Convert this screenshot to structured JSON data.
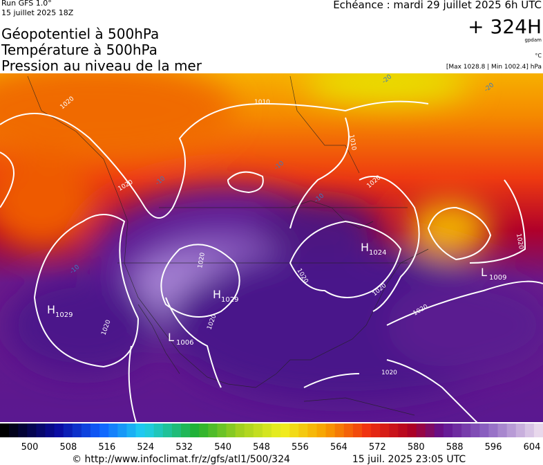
{
  "header": {
    "run": "Run GFS 1.0°",
    "date": "15 juillet 2025 18Z",
    "forecast": "Echéance : mardi 29 juillet 2025 6h UTC",
    "lead": "+ 324H",
    "unit_height": "gpdam",
    "unit_temp": "°C",
    "range": "[Max 1028.8 | Min 1002.4] hPa",
    "titles": [
      "Géopotentiel à 500hPa",
      "Température à 500hPa",
      "Pression au niveau de la mer"
    ]
  },
  "map": {
    "centers": [
      {
        "letter": "H",
        "value": "1029"
      },
      {
        "letter": "H",
        "value": "1024"
      },
      {
        "letter": "H",
        "value": "1029"
      },
      {
        "letter": "L",
        "value": "1006"
      },
      {
        "letter": "L",
        "value": "1009"
      }
    ],
    "isobar_labels": [
      "1020",
      "1010",
      "1010",
      "1020",
      "1020",
      "1020",
      "1020",
      "1020",
      "1020",
      "1020",
      "1020",
      "1020",
      "1020"
    ],
    "temp_labels": [
      "-20",
      "-20",
      "-10",
      "-10",
      "-10",
      "-10"
    ]
  },
  "colorbar": {
    "ticks": [
      500,
      508,
      516,
      524,
      532,
      540,
      548,
      556,
      564,
      572,
      580,
      588,
      596,
      604
    ]
  },
  "footer": {
    "url": "© http://www.infoclimat.fr/z/gfs/atl1/500/324",
    "timestamp": "15 juil. 2025 23:05 UTC"
  }
}
